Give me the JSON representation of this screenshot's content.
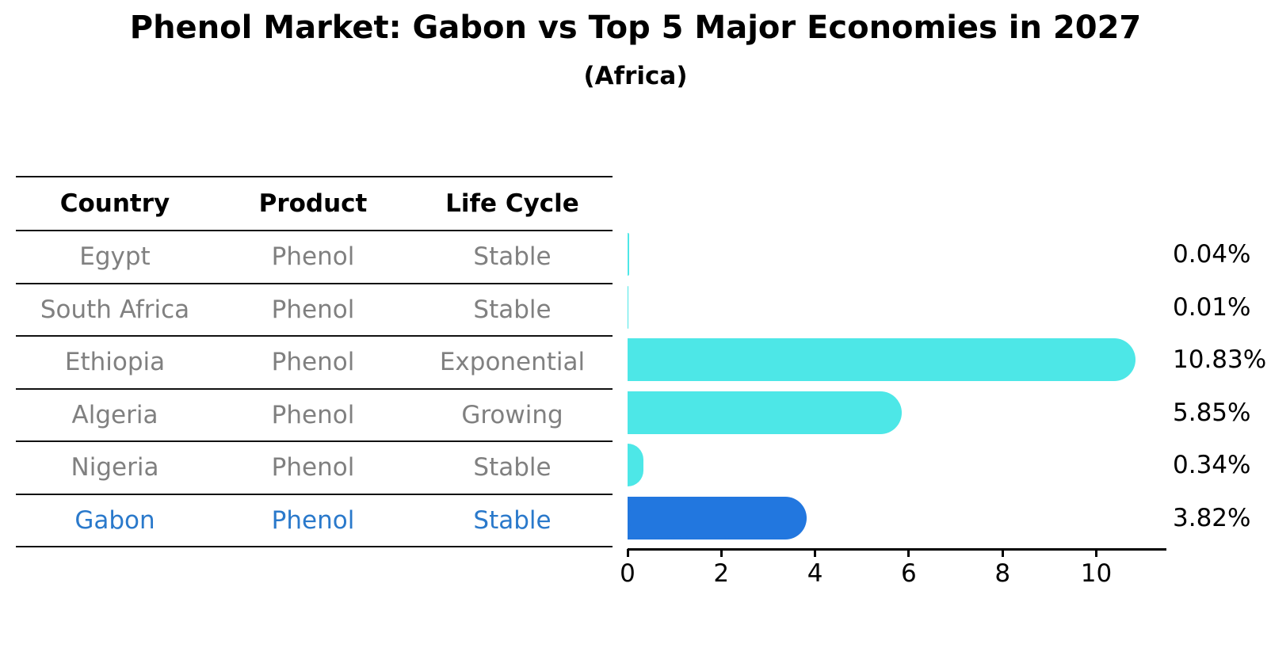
{
  "title": "Phenol Market: Gabon vs Top 5 Major Economies in 2027",
  "subtitle": "(Africa)",
  "table": {
    "headers": [
      "Country",
      "Product",
      "Life Cycle"
    ],
    "rows": [
      {
        "country": "Egypt",
        "product": "Phenol",
        "life_cycle": "Stable",
        "highlighted": false
      },
      {
        "country": "South Africa",
        "product": "Phenol",
        "life_cycle": "Stable",
        "highlighted": false
      },
      {
        "country": "Ethiopia",
        "product": "Phenol",
        "life_cycle": "Exponential",
        "highlighted": false
      },
      {
        "country": "Algeria",
        "product": "Phenol",
        "life_cycle": "Growing",
        "highlighted": false
      },
      {
        "country": "Nigeria",
        "product": "Phenol",
        "life_cycle": "Stable",
        "highlighted": false
      },
      {
        "country": "Gabon",
        "product": "Phenol",
        "life_cycle": "Stable",
        "highlighted": true
      }
    ]
  },
  "chart_data": {
    "type": "bar",
    "orientation": "horizontal",
    "categories": [
      "Egypt",
      "South Africa",
      "Ethiopia",
      "Algeria",
      "Nigeria",
      "Gabon"
    ],
    "values": [
      0.04,
      0.01,
      10.83,
      5.85,
      0.34,
      3.82
    ],
    "value_labels": [
      "0.04%",
      "0.01%",
      "10.83%",
      "5.85%",
      "0.34%",
      "3.82%"
    ],
    "xticks": [
      0,
      2,
      4,
      6,
      8,
      10
    ],
    "xlim": [
      0,
      11.5
    ],
    "grid": false,
    "legend": false,
    "highlight_index": 5,
    "colors": {
      "default_bar": "#4DE7E7",
      "highlight_bar": "#2277DF",
      "highlight_border": "#1C6AD0",
      "highlight_text": "#2A79CB",
      "muted_text": "#808080",
      "text": "#000000"
    }
  }
}
